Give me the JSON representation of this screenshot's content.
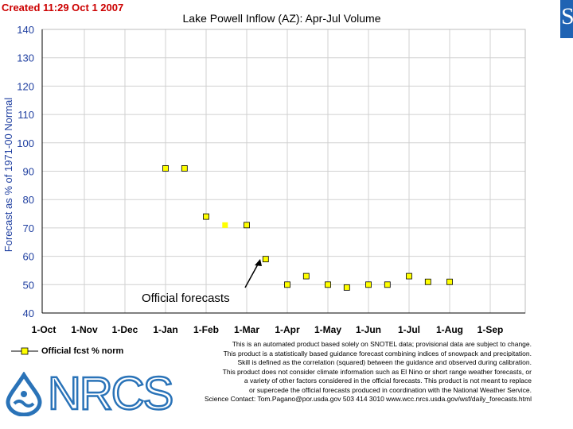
{
  "created": "Created 11:29 Oct 1 2007",
  "side_logo": "S",
  "chart_data": {
    "type": "scatter",
    "title": "Lake Powell Inflow (AZ): Apr-Jul Volume",
    "ylabel": "Forecast as % of 1971-00 Normal",
    "ylim": [
      40,
      140
    ],
    "yticks": [
      40,
      50,
      60,
      70,
      80,
      90,
      100,
      110,
      120,
      130,
      140
    ],
    "xticks": [
      "1-Oct",
      "1-Nov",
      "1-Dec",
      "1-Jan",
      "1-Feb",
      "1-Mar",
      "1-Apr",
      "1-May",
      "1-Jun",
      "1-Jul",
      "1-Aug",
      "1-Sep"
    ],
    "grid": true,
    "legend_position": "bottom-left",
    "series": [
      {
        "name": "Official fcst % norm",
        "color": "#ffff00",
        "points": [
          {
            "x": "1-Jan",
            "y": 91,
            "official": true
          },
          {
            "x": "15-Jan",
            "y": 91,
            "official": true
          },
          {
            "x": "1-Feb",
            "y": 74,
            "official": true
          },
          {
            "x": "15-Feb",
            "y": 71,
            "official": false
          },
          {
            "x": "1-Mar",
            "y": 71,
            "official": true
          },
          {
            "x": "15-Mar",
            "y": 59,
            "official": true
          },
          {
            "x": "1-Apr",
            "y": 50,
            "official": true
          },
          {
            "x": "15-Apr",
            "y": 53,
            "official": true
          },
          {
            "x": "1-May",
            "y": 50,
            "official": true
          },
          {
            "x": "15-May",
            "y": 49,
            "official": true
          },
          {
            "x": "1-Jun",
            "y": 50,
            "official": true
          },
          {
            "x": "15-Jun",
            "y": 50,
            "official": true
          },
          {
            "x": "1-Jul",
            "y": 53,
            "official": true
          },
          {
            "x": "15-Jul",
            "y": 51,
            "official": true
          },
          {
            "x": "1-Aug",
            "y": 51,
            "official": true
          }
        ]
      }
    ],
    "annotation": "Official forecasts"
  },
  "disclaimer": [
    "This is an automated product based solely on SNOTEL data; provisional data are subject to change.",
    "This product is a statistically based guidance forecast combining indices of snowpack and precipitation.",
    "Skill is defined as the correlation (squared) between the guidance and observed during calibration.",
    "This product does not consider climate information such as El Nino or short range weather forecasts, or",
    "a variety of other factors considered in the official forecasts. This product is not meant to replace",
    "or supercede the official forecasts produced in coordination with the National Weather Service.",
    "Science Contact: Tom.Pagano@por.usda.gov 503 414 3010 www.wcc.nrcs.usda.gov/wsf/daily_forecasts.html"
  ],
  "logo_text": "NRCS",
  "colors": {
    "axis_text": "#1f3fa0",
    "grid": "#d0d0d0",
    "marker_fill": "#ffff00",
    "logo": "#2a73b8"
  }
}
